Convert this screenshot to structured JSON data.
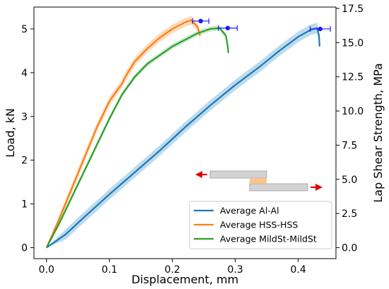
{
  "chart_data": {
    "type": "line",
    "xlabel": "Displacement, mm",
    "ylabel": "Load, kN",
    "y2label": "Lap Shear Strength, MPa",
    "xlim": [
      -0.02,
      0.46
    ],
    "ylim": [
      -0.25,
      5.5
    ],
    "y2lim": [
      -0.8,
      17.6
    ],
    "xticks": [
      0.0,
      0.1,
      0.2,
      0.3,
      0.4
    ],
    "xtick_labels": [
      "0.0",
      "0.1",
      "0.2",
      "0.3",
      "0.4"
    ],
    "yticks": [
      0,
      1,
      2,
      3,
      4,
      5
    ],
    "ytick_labels": [
      "0",
      "1",
      "2",
      "3",
      "4",
      "5"
    ],
    "y2ticks": [
      0.0,
      2.5,
      5.0,
      7.5,
      10.0,
      12.5,
      15.0,
      17.5
    ],
    "y2tick_labels": [
      "0.0",
      "2.5",
      "5.0",
      "7.5",
      "10.0",
      "12.5",
      "15.0",
      "17.5"
    ],
    "grid": false,
    "legend_position": "lower-right",
    "series": [
      {
        "name": "Average Al-Al",
        "color": "#1f77b4",
        "band_color": "#a6cfe8",
        "band_width": 0.12,
        "x": [
          0.0,
          0.03,
          0.06,
          0.1,
          0.14,
          0.18,
          0.22,
          0.26,
          0.3,
          0.34,
          0.37,
          0.4,
          0.42,
          0.43,
          0.433,
          0.434
        ],
        "y": [
          0.0,
          0.3,
          0.7,
          1.22,
          1.72,
          2.22,
          2.75,
          3.25,
          3.72,
          4.15,
          4.5,
          4.82,
          4.98,
          5.02,
          4.85,
          4.6
        ]
      },
      {
        "name": "Average HSS-HSS",
        "color": "#ff7f0e",
        "band_color": "#fdd0a8",
        "band_width": 0.1,
        "x": [
          0.0,
          0.02,
          0.04,
          0.06,
          0.08,
          0.1,
          0.12,
          0.125,
          0.14,
          0.16,
          0.18,
          0.2,
          0.22,
          0.23,
          0.24,
          0.244
        ],
        "y": [
          0.0,
          0.65,
          1.35,
          2.05,
          2.75,
          3.35,
          3.75,
          3.9,
          4.25,
          4.55,
          4.8,
          5.0,
          5.15,
          5.2,
          5.05,
          4.85
        ]
      },
      {
        "name": "Average MildSt-MildSt",
        "color": "#2ca02c",
        "band_color": "#bfe3bf",
        "band_width": 0.06,
        "x": [
          0.0,
          0.02,
          0.04,
          0.06,
          0.08,
          0.1,
          0.12,
          0.14,
          0.16,
          0.18,
          0.2,
          0.22,
          0.24,
          0.26,
          0.275,
          0.285,
          0.288,
          0.289
        ],
        "y": [
          0.0,
          0.55,
          1.15,
          1.75,
          2.35,
          2.95,
          3.5,
          3.9,
          4.2,
          4.4,
          4.6,
          4.75,
          4.9,
          5.0,
          5.02,
          4.85,
          4.6,
          4.45
        ]
      }
    ],
    "failure_points": [
      {
        "series": "Average HSS-HSS",
        "x": 0.245,
        "y": 5.18,
        "xerr": 0.013,
        "color": "#1a1aff"
      },
      {
        "series": "Average MildSt-MildSt",
        "x": 0.288,
        "y": 5.02,
        "xerr": 0.015,
        "color": "#1a1aff"
      },
      {
        "series": "Average Al-Al",
        "x": 0.435,
        "y": 5.0,
        "xerr": 0.016,
        "color": "#1a1aff"
      }
    ],
    "specimen_icon": {
      "plate_color": "#d3d3d3",
      "overlap_color": "#fbc48c",
      "arrow_color": "#e60000"
    }
  }
}
